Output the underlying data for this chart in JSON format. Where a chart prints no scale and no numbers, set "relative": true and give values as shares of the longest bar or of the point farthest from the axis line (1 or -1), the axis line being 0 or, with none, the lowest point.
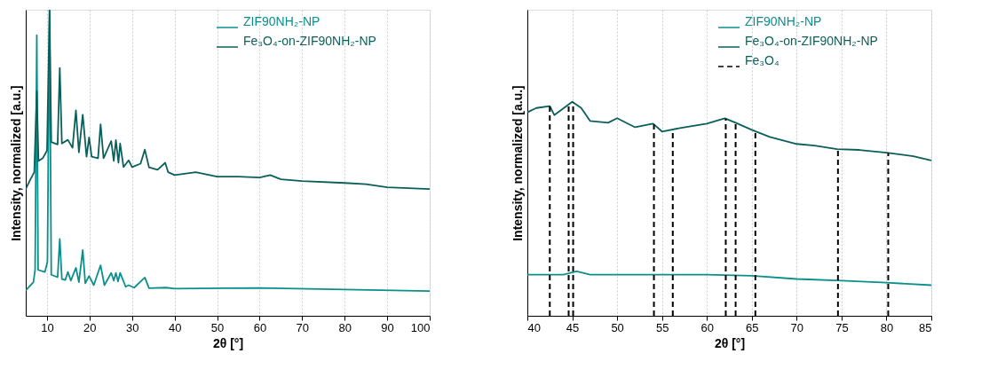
{
  "chart_data": [
    {
      "type": "line",
      "xlabel": "2θ [°]",
      "ylabel": "Intensity, normalized [a.u.]",
      "relative": true,
      "xlim": [
        5,
        100
      ],
      "xticks": [
        10,
        20,
        30,
        40,
        50,
        60,
        70,
        80,
        90,
        100
      ],
      "grid": "x",
      "legend": "top right",
      "line_style": "solid",
      "series": [
        {
          "name": "ZIF90NH₂-NP",
          "color": "#0a8f8c",
          "x": [
            5,
            6.8,
            7.2,
            7.6,
            7.9,
            9.5,
            10.1,
            10.6,
            11,
            12.5,
            13.0,
            13.5,
            14.3,
            14.9,
            15.6,
            16.8,
            17.5,
            18.4,
            19.0,
            19.9,
            21,
            22.6,
            23.5,
            25.1,
            25.7,
            26.2,
            26.7,
            27.2,
            28.5,
            29.2,
            30.5,
            33.0,
            34,
            38,
            40,
            60,
            100
          ],
          "values": [
            0.083,
            0.11,
            0.15,
            0.917,
            0.15,
            0.143,
            0.177,
            1.0,
            0.134,
            0.126,
            0.251,
            0.12,
            0.117,
            0.143,
            0.115,
            0.157,
            0.11,
            0.215,
            0.106,
            0.13,
            0.1,
            0.165,
            0.1,
            0.14,
            0.115,
            0.14,
            0.112,
            0.14,
            0.095,
            0.1,
            0.092,
            0.125,
            0.09,
            0.092,
            0.089,
            0.091,
            0.081
          ]
        },
        {
          "name": "Fe₃O₄-on-ZIF90NH₂-NP",
          "color": "#0b5f5a",
          "x": [
            5,
            6,
            7,
            7.6,
            8,
            9,
            10,
            10.6,
            11,
            12.5,
            13.0,
            13.5,
            14.9,
            16,
            16.8,
            17.5,
            18.4,
            19.3,
            19.9,
            20.5,
            22,
            22.6,
            23.3,
            25.1,
            25.7,
            26.2,
            26.8,
            27.2,
            28,
            29.2,
            30,
            32,
            33,
            34,
            36,
            37.8,
            38.5,
            40,
            45,
            50,
            55,
            60,
            62.5,
            65,
            70,
            80,
            85,
            90,
            100
          ],
          "values": [
            0.414,
            0.443,
            0.469,
            0.734,
            0.506,
            0.515,
            0.54,
            1.0,
            0.568,
            0.56,
            0.81,
            0.563,
            0.575,
            0.549,
            0.671,
            0.534,
            0.657,
            0.52,
            0.583,
            0.52,
            0.515,
            0.626,
            0.515,
            0.571,
            0.506,
            0.574,
            0.5,
            0.563,
            0.486,
            0.508,
            0.486,
            0.497,
            0.543,
            0.485,
            0.477,
            0.5,
            0.469,
            0.46,
            0.469,
            0.455,
            0.455,
            0.452,
            0.46,
            0.446,
            0.44,
            0.434,
            0.43,
            0.42,
            0.414
          ]
        }
      ]
    },
    {
      "type": "line",
      "xlabel": "2θ [°]",
      "ylabel": "Intensity, normalized [a.u.]",
      "relative": true,
      "xlim": [
        40,
        85
      ],
      "xticks": [
        40,
        45,
        50,
        55,
        60,
        65,
        70,
        75,
        80,
        85
      ],
      "grid": "x",
      "legend": "top right",
      "line_style": "solid",
      "series": [
        {
          "name": "ZIF90NH₂-NP",
          "color": "#0a8f8c",
          "x": [
            40,
            42.5,
            44,
            45.5,
            47,
            50,
            55,
            60,
            65,
            70,
            75,
            80,
            85
          ],
          "values": [
            0.192,
            0.192,
            0.192,
            0.208,
            0.192,
            0.192,
            0.192,
            0.192,
            0.187,
            0.172,
            0.164,
            0.155,
            0.143
          ]
        },
        {
          "name": "Fe₃O₄-on-ZIF90NH₂-NP",
          "color": "#0b5f5a",
          "x": [
            40,
            41,
            42.5,
            43,
            44.5,
            45,
            46,
            47,
            49,
            50,
            52,
            54,
            55,
            57,
            60,
            62,
            63.2,
            65,
            67,
            70,
            72,
            74.5,
            77,
            80,
            83,
            85
          ],
          "values": [
            0.951,
            0.971,
            0.98,
            0.938,
            0.984,
            1.0,
            0.971,
            0.91,
            0.902,
            0.923,
            0.881,
            0.898,
            0.861,
            0.877,
            0.898,
            0.923,
            0.902,
            0.869,
            0.836,
            0.803,
            0.795,
            0.779,
            0.775,
            0.762,
            0.746,
            0.726
          ]
        }
      ],
      "ref_lines": [
        {
          "axis": "x",
          "value": 42.5,
          "label": "Fe₃O₄",
          "color": "#000000",
          "line_style": "dashed"
        },
        {
          "axis": "x",
          "value": 44.6,
          "color": "#000000",
          "line_style": "dashed"
        },
        {
          "axis": "x",
          "value": 45.1,
          "color": "#000000",
          "line_style": "dashed"
        },
        {
          "axis": "x",
          "value": 54.1,
          "color": "#000000",
          "line_style": "dashed"
        },
        {
          "axis": "x",
          "value": 56.2,
          "color": "#000000",
          "line_style": "dashed"
        },
        {
          "axis": "x",
          "value": 62.1,
          "color": "#000000",
          "line_style": "dashed"
        },
        {
          "axis": "x",
          "value": 63.2,
          "color": "#000000",
          "line_style": "dashed"
        },
        {
          "axis": "x",
          "value": 65.4,
          "color": "#000000",
          "line_style": "dashed"
        },
        {
          "axis": "x",
          "value": 74.6,
          "color": "#000000",
          "line_style": "dashed"
        },
        {
          "axis": "x",
          "value": 80.2,
          "color": "#000000",
          "line_style": "dashed"
        }
      ]
    }
  ]
}
